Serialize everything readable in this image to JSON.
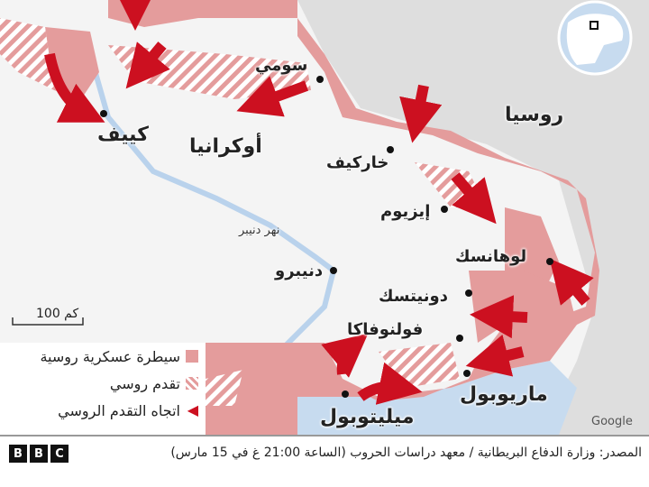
{
  "map": {
    "colors": {
      "land": "#f4f4f4",
      "russia": "#dedede",
      "sea": "#c7dbef",
      "control": "#e49c9c",
      "advance_stripe": "#e49c9c",
      "arrow": "#cc1020",
      "river": "#b9d2ec"
    },
    "labels": {
      "ukraine": "أوكرانيا",
      "russia": "روسيا",
      "kyiv": "كييف",
      "sumy": "سومي",
      "kharkiv": "خاركيف",
      "izium": "إيزيوم",
      "dnipro_river": "نهر دنيبر",
      "dnipro": "دنيبرو",
      "luhansk": "لوهانسك",
      "donetsk": "دونيتسك",
      "volnovakha": "فولنوفاكا",
      "mariupol": "ماريوبول",
      "melitopol": "ميليتوبول"
    },
    "scale": "100 كم",
    "attribution": "Google"
  },
  "legend": {
    "items": [
      {
        "label": "سيطرة عسكرية روسية",
        "icon": "solid-square"
      },
      {
        "label": "تقدم روسي",
        "icon": "hatched-square"
      },
      {
        "label": "اتجاه التقدم الروسي",
        "icon": "arrow-left"
      }
    ]
  },
  "footer": {
    "source": "المصدر: وزارة الدفاع البريطانية / معهد دراسات الحروب (الساعة 21:00 غ في 15 مارس)",
    "logo": "BBC"
  }
}
